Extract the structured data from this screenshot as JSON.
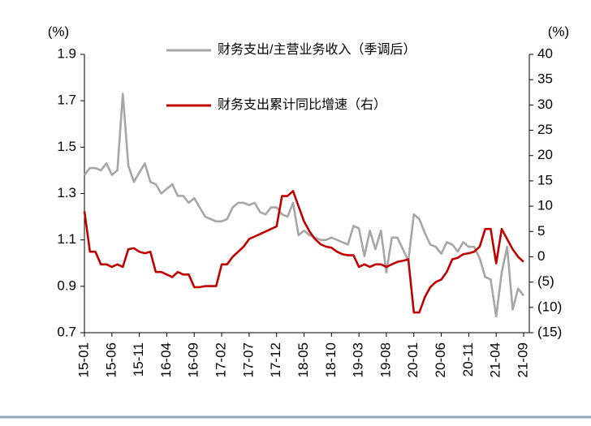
{
  "chart_data": {
    "type": "line",
    "y_unit": "(%)",
    "y2_unit": "(%)",
    "categories": [
      "15-01",
      null,
      null,
      null,
      null,
      "15-06",
      null,
      null,
      null,
      null,
      "15-11",
      null,
      null,
      null,
      null,
      "16-04",
      null,
      null,
      null,
      null,
      "16-09",
      null,
      null,
      null,
      null,
      "17-02",
      null,
      null,
      null,
      null,
      "17-07",
      null,
      null,
      null,
      null,
      "17-12",
      null,
      null,
      null,
      null,
      "18-05",
      null,
      null,
      null,
      null,
      "18-10",
      null,
      null,
      null,
      null,
      "19-03",
      null,
      null,
      null,
      null,
      "19-08",
      null,
      null,
      null,
      null,
      "20-01",
      null,
      null,
      null,
      null,
      "20-06",
      null,
      null,
      null,
      null,
      "20-11",
      null,
      null,
      null,
      null,
      "21-04",
      null,
      null,
      null,
      null,
      "21-09"
    ],
    "series": [
      {
        "name": "财务支出/主营业务收入（季调后）",
        "color": "#a6a6a6",
        "axis": "y",
        "values": [
          1.38,
          1.41,
          1.41,
          1.4,
          1.43,
          1.38,
          1.4,
          1.73,
          1.42,
          1.35,
          1.39,
          1.43,
          1.35,
          1.34,
          1.3,
          1.32,
          1.34,
          1.29,
          1.29,
          1.26,
          1.28,
          1.24,
          1.2,
          1.19,
          1.18,
          1.18,
          1.19,
          1.24,
          1.26,
          1.26,
          1.25,
          1.26,
          1.22,
          1.21,
          1.24,
          1.24,
          1.21,
          1.2,
          1.26,
          1.12,
          1.14,
          1.12,
          1.11,
          1.1,
          1.1,
          1.11,
          1.1,
          1.09,
          1.08,
          1.16,
          1.15,
          1.03,
          1.14,
          1.06,
          1.14,
          0.96,
          1.11,
          1.11,
          1.06,
          1.01,
          1.21,
          1.19,
          1.13,
          1.08,
          1.07,
          1.04,
          1.09,
          1.08,
          1.05,
          1.09,
          1.07,
          1.07,
          1.02,
          0.94,
          0.93,
          0.77,
          0.96,
          1.07,
          0.8,
          0.89,
          0.86
        ]
      },
      {
        "name": "财务支出累计同比增速（右）",
        "color": "#c00000",
        "axis": "y2",
        "values": [
          9,
          1,
          1,
          -1.5,
          -1.5,
          -2,
          -1.5,
          -2,
          1.5,
          1.7,
          1,
          0.7,
          1,
          -3,
          -3,
          -3.5,
          -4,
          -3,
          -3.5,
          -3.5,
          -6,
          -6,
          -5.8,
          -5.8,
          -5.8,
          -1.5,
          -1.5,
          0,
          1,
          2,
          3.5,
          4,
          4.5,
          5,
          5.5,
          6,
          12,
          12,
          13,
          10,
          7,
          5,
          3.5,
          2.5,
          2,
          1.8,
          1,
          0.5,
          0.3,
          0.3,
          -2,
          -1.5,
          -2,
          -1.5,
          -1.5,
          -2,
          -1.5,
          -1,
          -0.8,
          -0.5,
          -11,
          -11,
          -8,
          -6,
          -5,
          -4.5,
          -3,
          -0.5,
          -0.2,
          0.5,
          0.7,
          1,
          2,
          5.5,
          5.5,
          -1.3,
          5.5,
          3.5,
          1.5,
          0,
          -1
        ]
      }
    ],
    "ylim": [
      0.7,
      1.9
    ],
    "yticks": [
      0.7,
      0.9,
      1.1,
      1.3,
      1.5,
      1.7,
      1.9
    ],
    "y2lim": [
      -15,
      40
    ],
    "y2ticks": [
      {
        "value": -15,
        "label": "(15)"
      },
      {
        "value": -10,
        "label": "(10)"
      },
      {
        "value": -5,
        "label": "(5)"
      },
      0,
      5,
      10,
      15,
      20,
      25,
      30,
      35,
      40
    ]
  }
}
